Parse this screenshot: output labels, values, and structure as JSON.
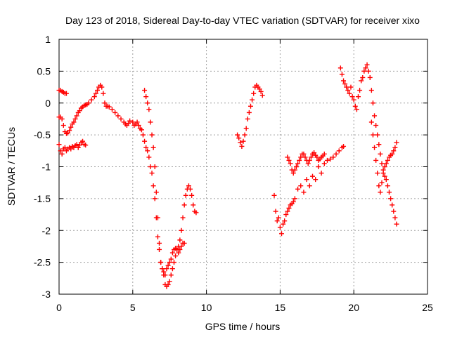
{
  "chart_data": {
    "type": "scatter",
    "title": "Day 123 of 2018, Sidereal Day-to-day VTEC variation (SDTVAR) for receiver xixo",
    "xlabel": "GPS time / hours",
    "ylabel": "SDTVAR / TECUs",
    "xlim": [
      0,
      25
    ],
    "ylim": [
      -3,
      1
    ],
    "x_ticks": [
      "0",
      "5",
      "10",
      "15",
      "20",
      "25"
    ],
    "y_ticks": [
      "1",
      "0.5",
      "0",
      "-0.5",
      "-1",
      "-1.5",
      "-2",
      "-2.5",
      "-3"
    ],
    "grid": true,
    "marker": "+",
    "color": "#ff0000",
    "series": [
      {
        "name": "segment-1a",
        "x": [
          0.0,
          0.1,
          0.2,
          0.3,
          0.4,
          0.5
        ],
        "y": [
          0.2,
          0.2,
          0.18,
          0.17,
          0.15,
          0.15
        ]
      },
      {
        "name": "segment-1b",
        "x": [
          0.0,
          0.1,
          0.2,
          0.3,
          0.4,
          0.5,
          0.6,
          0.7,
          0.8,
          0.9,
          1.0,
          1.1,
          1.2,
          1.3,
          1.4,
          1.5,
          1.6,
          1.7,
          1.8,
          1.9,
          2.0,
          2.2,
          2.4,
          2.5,
          2.6,
          2.7,
          2.8,
          2.9,
          3.0,
          3.1,
          3.2,
          3.3,
          3.4,
          3.6,
          3.8,
          4.0,
          4.2,
          4.4,
          4.5,
          4.6,
          4.7,
          4.8,
          5.0,
          5.1,
          5.2,
          5.3,
          5.4,
          5.5,
          5.6,
          5.7,
          5.8,
          5.9,
          6.0,
          6.1,
          6.2,
          6.3,
          6.4,
          6.5,
          6.6,
          6.7,
          6.8,
          6.9,
          7.0,
          7.1,
          7.2,
          7.3,
          7.4,
          7.5,
          7.6,
          7.7,
          7.8,
          7.9,
          8.0,
          8.1,
          8.2,
          8.3,
          8.4,
          8.5,
          8.6,
          8.7,
          8.8,
          8.9,
          9.0,
          9.1,
          9.2,
          9.3
        ],
        "y": [
          -0.22,
          -0.22,
          -0.25,
          -0.35,
          -0.45,
          -0.48,
          -0.47,
          -0.43,
          -0.38,
          -0.33,
          -0.3,
          -0.25,
          -0.2,
          -0.15,
          -0.12,
          -0.08,
          -0.06,
          -0.04,
          -0.03,
          -0.02,
          0.0,
          0.05,
          0.1,
          0.15,
          0.2,
          0.25,
          0.28,
          0.25,
          0.15,
          0.0,
          -0.05,
          -0.05,
          -0.06,
          -0.1,
          -0.15,
          -0.2,
          -0.25,
          -0.3,
          -0.33,
          -0.35,
          -0.32,
          -0.28,
          -0.3,
          -0.35,
          -0.33,
          -0.3,
          -0.35,
          -0.4,
          -0.42,
          -0.5,
          -0.6,
          -0.7,
          -0.75,
          -0.85,
          -1.0,
          -1.1,
          -1.3,
          -1.5,
          -1.8,
          -2.1,
          -2.3,
          -2.5,
          -2.6,
          -2.7,
          -2.85,
          -2.88,
          -2.85,
          -2.8,
          -2.7,
          -2.6,
          -2.5,
          -2.4,
          -2.3,
          -2.25,
          -2.15,
          -2.0,
          -1.8,
          -1.6,
          -1.45,
          -1.35,
          -1.3,
          -1.35,
          -1.45,
          -1.6,
          -1.7,
          -1.72
        ]
      },
      {
        "name": "segment-1c",
        "x": [
          0.0,
          0.1,
          0.2,
          0.3,
          0.4,
          0.5,
          0.6,
          0.7,
          0.8,
          0.9,
          1.0,
          1.1,
          1.2,
          1.3,
          1.4,
          1.5,
          1.6,
          1.7,
          1.8
        ],
        "y": [
          -0.65,
          -0.75,
          -0.8,
          -0.72,
          -0.7,
          -0.75,
          -0.72,
          -0.7,
          -0.72,
          -0.68,
          -0.7,
          -0.67,
          -0.65,
          -0.7,
          -0.66,
          -0.62,
          -0.6,
          -0.65,
          -0.66
        ]
      },
      {
        "name": "segment-2",
        "x": [
          5.8,
          5.9,
          6.0,
          6.1,
          6.2,
          6.3,
          6.4,
          6.5,
          6.6,
          6.7,
          6.8,
          6.9,
          7.0,
          7.1,
          7.2,
          7.3,
          7.4,
          7.5,
          7.6,
          7.7,
          7.8,
          7.9,
          8.0,
          8.1,
          8.2,
          8.3,
          8.4,
          8.5
        ],
        "y": [
          0.2,
          0.1,
          0.0,
          -0.1,
          -0.3,
          -0.5,
          -0.7,
          -1.0,
          -1.4,
          -1.8,
          -2.2,
          -2.5,
          -2.6,
          -2.65,
          -2.7,
          -2.6,
          -2.55,
          -2.5,
          -2.45,
          -2.35,
          -2.3,
          -2.28,
          -2.3,
          -2.35,
          -2.3,
          -2.25,
          -2.2,
          -2.2
        ]
      },
      {
        "name": "segment-3",
        "x": [
          12.1,
          12.2,
          12.3,
          12.4,
          12.5,
          12.6,
          12.7,
          12.8,
          12.9,
          13.0,
          13.1,
          13.2,
          13.3,
          13.4,
          13.5,
          13.6,
          13.7,
          13.8
        ],
        "y": [
          -0.5,
          -0.55,
          -0.62,
          -0.68,
          -0.6,
          -0.5,
          -0.4,
          -0.25,
          -0.15,
          -0.05,
          0.05,
          0.15,
          0.25,
          0.28,
          0.25,
          0.22,
          0.18,
          0.12
        ]
      },
      {
        "name": "segment-4a",
        "x": [
          14.6,
          14.7,
          14.8,
          14.9,
          15.0,
          15.1,
          15.2,
          15.3,
          15.4,
          15.5,
          15.6,
          15.7,
          15.8,
          15.9,
          16.0,
          16.2,
          16.4,
          16.6,
          16.8,
          17.0,
          17.2,
          17.4,
          17.6,
          17.8,
          18.0,
          18.2,
          18.4,
          18.6,
          18.8,
          19.0,
          19.2,
          19.3
        ],
        "y": [
          -1.45,
          -1.7,
          -1.85,
          -1.8,
          -1.95,
          -2.05,
          -1.9,
          -1.85,
          -1.75,
          -1.7,
          -1.65,
          -1.6,
          -1.58,
          -1.55,
          -1.5,
          -1.35,
          -1.3,
          -1.4,
          -1.2,
          -1.3,
          -1.15,
          -1.2,
          -1.0,
          -1.1,
          -0.95,
          -0.9,
          -0.88,
          -0.85,
          -0.8,
          -0.75,
          -0.7,
          -0.68
        ]
      },
      {
        "name": "segment-4b",
        "x": [
          15.5,
          15.6,
          15.7,
          15.8,
          15.9,
          16.0,
          16.1,
          16.2,
          16.3,
          16.4,
          16.5,
          16.6,
          16.7,
          16.8,
          16.9,
          17.0,
          17.1,
          17.2,
          17.3,
          17.4,
          17.5,
          17.6,
          17.7,
          17.8,
          17.9,
          18.0
        ],
        "y": [
          -0.85,
          -0.9,
          -0.95,
          -1.05,
          -1.1,
          -1.05,
          -1.0,
          -0.95,
          -0.9,
          -0.85,
          -0.8,
          -0.8,
          -0.85,
          -0.9,
          -0.95,
          -0.9,
          -0.85,
          -0.8,
          -0.78,
          -0.82,
          -0.85,
          -0.9,
          -0.88,
          -0.85,
          -0.83,
          -0.8
        ]
      },
      {
        "name": "segment-5",
        "x": [
          19.1,
          19.2,
          19.3,
          19.4,
          19.5,
          19.6,
          19.7,
          19.8,
          19.9,
          20.0,
          20.1,
          20.2,
          20.3,
          20.4,
          20.5,
          20.6,
          20.7,
          20.8,
          20.9,
          21.0,
          21.1,
          21.2,
          21.3,
          21.4,
          21.5,
          21.6,
          21.7,
          21.8,
          21.9,
          22.0,
          22.1,
          22.2,
          22.3,
          22.4,
          22.5,
          22.6,
          22.7,
          22.8,
          22.9
        ],
        "y": [
          0.55,
          0.45,
          0.35,
          0.3,
          0.25,
          0.2,
          0.15,
          0.25,
          0.1,
          0.05,
          -0.05,
          -0.1,
          0.1,
          0.2,
          0.35,
          0.4,
          0.5,
          0.55,
          0.6,
          0.5,
          0.4,
          0.2,
          0.0,
          -0.2,
          -0.35,
          -0.5,
          -0.65,
          -0.8,
          -0.95,
          -1.05,
          -1.15,
          -1.2,
          -1.3,
          -1.4,
          -1.5,
          -1.6,
          -1.7,
          -1.8,
          -1.9
        ]
      },
      {
        "name": "segment-6",
        "x": [
          21.2,
          21.3,
          21.4,
          21.5,
          21.6,
          21.7,
          21.8,
          21.9,
          22.0,
          22.1,
          22.2,
          22.3,
          22.4,
          22.5,
          22.6,
          22.7,
          22.8,
          22.9
        ],
        "y": [
          -0.3,
          -0.5,
          -0.7,
          -0.9,
          -1.1,
          -1.3,
          -1.4,
          -1.25,
          -1.1,
          -1.0,
          -0.95,
          -0.9,
          -0.85,
          -0.82,
          -0.8,
          -0.75,
          -0.7,
          -0.62
        ]
      }
    ]
  }
}
